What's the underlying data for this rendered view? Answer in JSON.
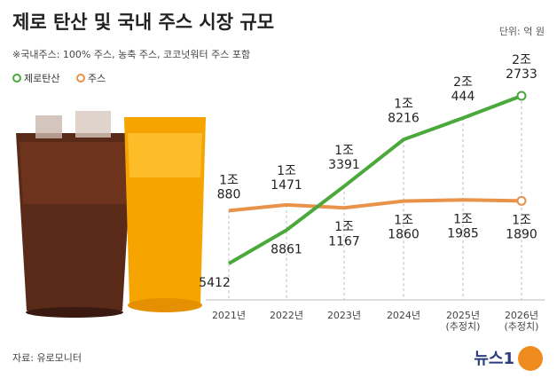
{
  "header": {
    "title": "제로 탄산 및 국내 주스 시장 규모",
    "unit": "단위: 억 원",
    "note": "※국내주스: 100% 주스, 농축 주스, 코코넛워터 주스 포함"
  },
  "chart_data": {
    "type": "line",
    "categories": [
      "2021년",
      "2022년",
      "2023년",
      "2024년",
      "2025년\n(추정치)",
      "2026년\n(추정치)"
    ],
    "series": [
      {
        "name": "제로탄산",
        "color": "#4aa93a",
        "values": [
          5412,
          8861,
          13391,
          18216,
          20444,
          22733
        ],
        "value_labels": [
          "5412",
          "8861",
          "1조\n3391",
          "1조\n8216",
          "2조\n444",
          "2조\n2733"
        ]
      },
      {
        "name": "주스",
        "color": "#e8924a",
        "values": [
          10880,
          11471,
          11167,
          11860,
          11985,
          11890
        ],
        "value_labels": [
          "1조\n880",
          "1조\n1471",
          "1조\n1167",
          "1조\n1860",
          "1조\n1985",
          "1조\n1890"
        ]
      }
    ]
  },
  "footer": {
    "source": "자료: 유로모니터",
    "logo": "뉴스1"
  }
}
